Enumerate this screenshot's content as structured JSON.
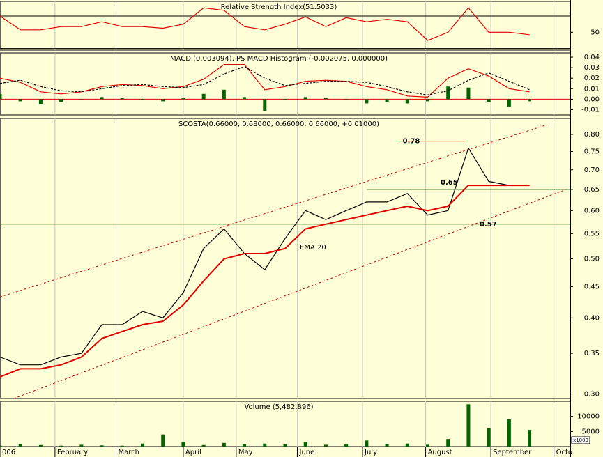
{
  "chart_data": [
    {
      "type": "line",
      "title": "Relative Strength Index(51.5033)",
      "x": [
        0,
        10,
        20,
        30,
        40,
        50,
        60,
        70,
        80,
        90,
        100,
        110,
        120,
        130,
        140,
        150,
        160,
        170,
        180,
        190,
        200,
        210,
        220,
        230,
        240,
        250,
        260
      ],
      "series": [
        {
          "color": "#e00000",
          "values": [
            70,
            53,
            53,
            57,
            57,
            63,
            57,
            57,
            55,
            60,
            80,
            77,
            57,
            53,
            60,
            69,
            57,
            68,
            63,
            66,
            63,
            40,
            50,
            80,
            50,
            50,
            47
          ]
        }
      ],
      "xlim": [
        0,
        280
      ],
      "ylim": [
        28,
        88
      ],
      "yticks": [
        50
      ],
      "hlines": [
        30,
        70
      ]
    },
    {
      "type": "line",
      "title": "MACD (0.003094), PS MACD Histogram (-0.002075, 0.000000)",
      "x": [
        0,
        10,
        20,
        30,
        40,
        50,
        60,
        70,
        80,
        90,
        100,
        110,
        120,
        130,
        140,
        150,
        160,
        170,
        180,
        190,
        200,
        210,
        220,
        230,
        240,
        250,
        260
      ],
      "series": [
        {
          "type": "bar",
          "color": "#006400",
          "values": [
            0.005,
            -0.002,
            -0.005,
            -0.003,
            0,
            0.002,
            0.001,
            -0.001,
            -0.002,
            0.001,
            0.005,
            0.009,
            0.002,
            -0.011,
            -0.001,
            0.002,
            0.001,
            0,
            -0.004,
            -0.003,
            -0.004,
            -0.002,
            0.012,
            0.011,
            -0.003,
            -0.007,
            -0.002
          ]
        },
        {
          "color": "#e00000",
          "values": [
            0.02,
            0.016,
            0.007,
            0.005,
            0.007,
            0.012,
            0.014,
            0.013,
            0.01,
            0.012,
            0.019,
            0.033,
            0.033,
            0.009,
            0.012,
            0.017,
            0.018,
            0.017,
            0.012,
            0.009,
            0.003,
            0.002,
            0.02,
            0.029,
            0.022,
            0.01,
            0.007
          ]
        },
        {
          "color": "#000000",
          "dashed": true,
          "values": [
            0.015,
            0.018,
            0.012,
            0.008,
            0.007,
            0.01,
            0.013,
            0.014,
            0.012,
            0.011,
            0.014,
            0.024,
            0.031,
            0.02,
            0.013,
            0.015,
            0.017,
            0.017,
            0.016,
            0.012,
            0.007,
            0.004,
            0.008,
            0.018,
            0.025,
            0.017,
            0.009
          ]
        }
      ],
      "xlim": [
        0,
        280
      ],
      "ylim": [
        -0.015,
        0.044
      ],
      "yticks": [
        0.04,
        0.03,
        0.02,
        0.01,
        {
          "value": 0,
          "label": "0.00"
        },
        -0.01
      ],
      "zero_line": "#e00000"
    },
    {
      "type": "line",
      "title": "SCOSTA(0.66000, 0.68000, 0.66000, 0.66000, +0.01000)",
      "log_scale": true,
      "x": [
        0,
        10,
        20,
        30,
        40,
        50,
        60,
        70,
        80,
        90,
        100,
        110,
        120,
        130,
        140,
        150,
        160,
        170,
        180,
        190,
        200,
        210,
        220,
        230,
        240,
        250,
        260
      ],
      "series": [
        {
          "color": "#000000",
          "values": [
            0.345,
            0.335,
            0.335,
            0.345,
            0.35,
            0.39,
            0.39,
            0.41,
            0.4,
            0.44,
            0.52,
            0.56,
            0.51,
            0.48,
            0.54,
            0.6,
            0.58,
            0.6,
            0.62,
            0.62,
            0.64,
            0.59,
            0.6,
            0.76,
            0.67,
            0.66,
            0.66
          ]
        },
        {
          "name": "EMA 20",
          "color": "#e00000",
          "values": [
            0.32,
            0.33,
            0.33,
            0.335,
            0.345,
            0.37,
            0.38,
            0.39,
            0.395,
            0.42,
            0.46,
            0.5,
            0.51,
            0.51,
            0.52,
            0.56,
            0.57,
            0.58,
            0.59,
            0.6,
            0.61,
            0.6,
            0.61,
            0.66,
            0.66,
            0.66,
            0.66
          ]
        }
      ],
      "xlim": [
        0,
        280
      ],
      "ylim": [
        0.295,
        0.85
      ],
      "yticks": [
        {
          "value": 0.3,
          "label": "0.30"
        },
        0.35,
        {
          "value": 0.4,
          "label": "0.40"
        },
        0.45,
        {
          "value": 0.5,
          "label": "0.50"
        },
        0.55,
        {
          "value": 0.6,
          "label": "0.60"
        },
        0.65,
        {
          "value": 0.7,
          "label": "0.70"
        },
        0.75,
        {
          "value": 0.8,
          "label": "0.80"
        }
      ],
      "levels": [
        {
          "value": 0.78,
          "label": "0.78",
          "x": [
            195,
            229
          ],
          "color": "#e00000"
        },
        {
          "value": 0.65,
          "label": "0.65",
          "x": [
            180,
            280
          ],
          "color": "#006400"
        },
        {
          "value": 0.57,
          "label": "0.57",
          "x": [
            0,
            280
          ],
          "color": "#006400"
        }
      ],
      "channel": [
        {
          "x": [
            0,
            268.7
          ],
          "values": [
            0.433,
            0.83
          ],
          "color": "#c00000"
        },
        {
          "x": [
            6.8,
            279
          ],
          "values": [
            0.295,
            0.652
          ],
          "color": "#c00000"
        }
      ]
    },
    {
      "type": "bar",
      "title": "Volume (5,482,896)",
      "unit_note": "x1000",
      "x": [
        0,
        10,
        20,
        30,
        40,
        50,
        60,
        70,
        80,
        90,
        100,
        110,
        120,
        130,
        140,
        150,
        160,
        170,
        180,
        190,
        200,
        210,
        220,
        230,
        240,
        250,
        260
      ],
      "series": [
        {
          "color": "#006400",
          "values": [
            300,
            800,
            500,
            300,
            600,
            400,
            300,
            1000,
            4000,
            1500,
            500,
            1200,
            800,
            1000,
            700,
            1500,
            600,
            800,
            2000,
            800,
            1000,
            600,
            2500,
            14000,
            6000,
            9000,
            5500
          ]
        }
      ],
      "xlim": [
        0,
        280
      ],
      "ylim": [
        0,
        15000
      ],
      "yticks": [
        10000,
        5000
      ],
      "xticks": [
        {
          "value": 0,
          "label": "006"
        },
        {
          "value": 27,
          "label": "February"
        },
        {
          "value": 57,
          "label": "March"
        },
        {
          "value": 90,
          "label": "April"
        },
        {
          "value": 116,
          "label": "May"
        },
        {
          "value": 146,
          "label": "June"
        },
        {
          "value": 178,
          "label": "July"
        },
        {
          "value": 209,
          "label": "August"
        },
        {
          "value": 241,
          "label": "September"
        },
        {
          "value": 272,
          "label": "Octo"
        }
      ]
    }
  ]
}
